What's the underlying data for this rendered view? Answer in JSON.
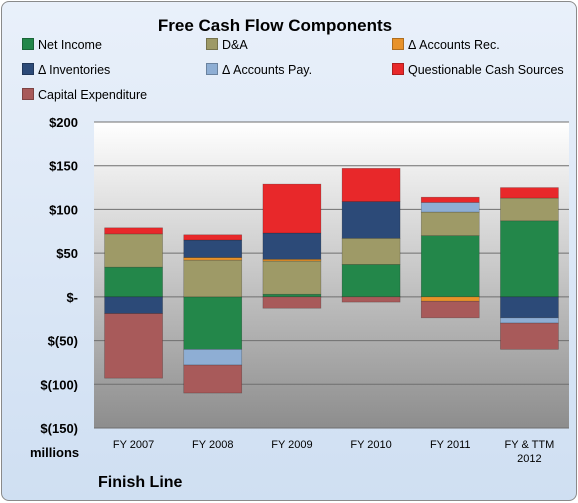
{
  "chart_data": {
    "type": "bar",
    "stacked": true,
    "title": "Free Cash Flow Components",
    "unit_label": "millions",
    "company": "Finish Line",
    "ylim": [
      -150,
      200
    ],
    "y_ticks": [
      200,
      150,
      100,
      50,
      0,
      -50,
      -100,
      -150
    ],
    "y_tick_labels": [
      "$200",
      "$150",
      "$100",
      "$50",
      "$-",
      "$(50)",
      "$(100)",
      "$(150)"
    ],
    "grid": true,
    "legend_position": "top",
    "categories": [
      [
        "FY 2007"
      ],
      [
        "FY 2008"
      ],
      [
        "FY 2009"
      ],
      [
        "FY 2010"
      ],
      [
        "FY 2011"
      ],
      [
        "FY & TTM",
        "2012"
      ]
    ],
    "series": [
      {
        "name": "Net Income",
        "color": "#23874a",
        "values": [
          34,
          -60,
          3,
          37,
          70,
          87
        ]
      },
      {
        "name": "D&A",
        "color": "#9e9a67",
        "values": [
          38,
          42,
          38,
          30,
          27,
          26
        ]
      },
      {
        "name": "Δ Accounts Rec.",
        "color": "#e8922a",
        "values": [
          0,
          3,
          2,
          0,
          -5,
          0
        ]
      },
      {
        "name": "Δ Inventories",
        "color": "#2c4a78",
        "values": [
          -19,
          20,
          30,
          42,
          0,
          -24
        ]
      },
      {
        "name": "Δ Accounts Pay.",
        "color": "#8eaed4",
        "values": [
          0,
          -18,
          0,
          0,
          11,
          -6
        ]
      },
      {
        "name": "Questionable Cash Sources",
        "color": "#e8282a",
        "values": [
          7,
          6,
          56,
          38,
          6,
          12
        ]
      },
      {
        "name": "Capital Expenditure",
        "color": "#a85a5a",
        "values": [
          -74,
          -32,
          -13,
          -6,
          -19,
          -30
        ]
      }
    ]
  }
}
